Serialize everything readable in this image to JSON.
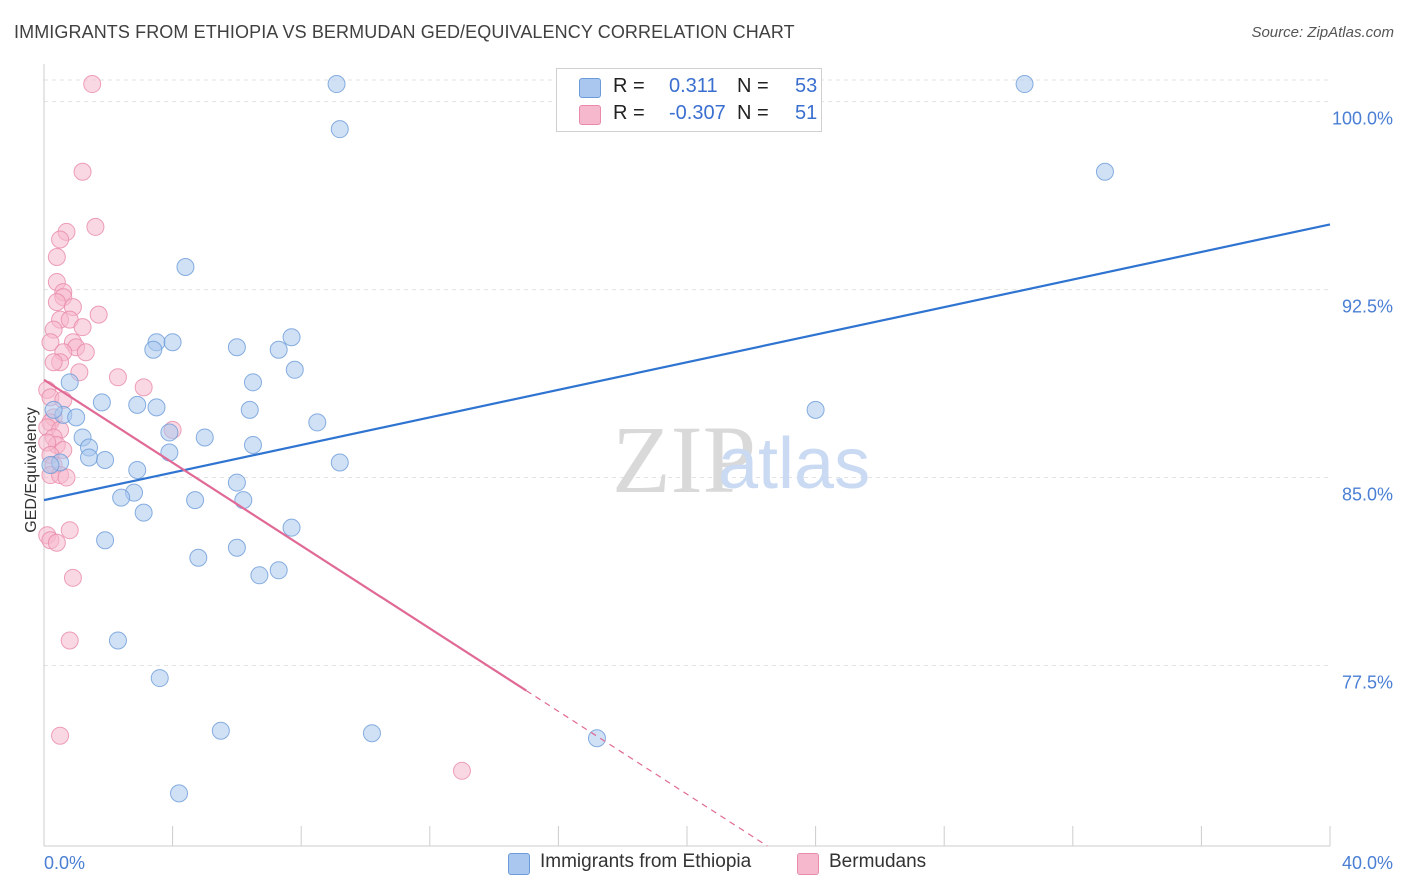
{
  "title": "IMMIGRANTS FROM ETHIOPIA VS BERMUDAN GED/EQUIVALENCY CORRELATION CHART",
  "source": "Source: ZipAtlas.com",
  "watermark": {
    "zip": "ZIP",
    "atlas": "atlas"
  },
  "legend": {
    "row1": {
      "r_label": "R =",
      "r_value": "0.311",
      "n_label": "N =",
      "n_value": "53"
    },
    "row2": {
      "r_label": "R =",
      "r_value": "-0.307",
      "n_label": "N =",
      "n_value": "51"
    }
  },
  "bottom_legend": {
    "series1": "Immigrants from Ethiopia",
    "series2": "Bermudans"
  },
  "colors": {
    "blue_fill": "#aac8ef",
    "blue_stroke": "#6b9bd8",
    "blue_line": "#2f74d0",
    "pink_fill": "#f6b8cc",
    "pink_stroke": "#e88aa8",
    "pink_line": "#e06a95",
    "tick_color": "#4a7fd4"
  },
  "chart_data": {
    "type": "scatter",
    "title": "IMMIGRANTS FROM ETHIOPIA VS BERMUDAN GED/EQUIVALENCY CORRELATION CHART",
    "xlabel": "",
    "ylabel": "GED/Equivalency",
    "xlim": [
      0,
      40
    ],
    "ylim": [
      70.3,
      101.5
    ],
    "x_tick_labels": [
      "0.0%",
      "40.0%"
    ],
    "y_ticks": [
      77.5,
      85.0,
      92.5,
      100.0
    ],
    "y_tick_labels": [
      "77.5%",
      "85.0%",
      "92.5%",
      "100.0%"
    ],
    "grid": true,
    "series": [
      {
        "name": "Immigrants from Ethiopia",
        "R": 0.311,
        "N": 53,
        "trend": {
          "x": [
            0.0,
            40.0
          ],
          "y": [
            84.1,
            95.1
          ]
        },
        "points": [
          [
            9.1,
            100.7
          ],
          [
            30.5,
            100.7
          ],
          [
            9.2,
            98.9
          ],
          [
            33.0,
            97.2
          ],
          [
            4.4,
            93.4
          ],
          [
            7.7,
            90.6
          ],
          [
            3.5,
            90.4
          ],
          [
            4.0,
            90.4
          ],
          [
            6.0,
            90.2
          ],
          [
            7.3,
            90.1
          ],
          [
            3.4,
            90.1
          ],
          [
            7.8,
            89.3
          ],
          [
            2.9,
            87.9
          ],
          [
            0.8,
            88.8
          ],
          [
            6.5,
            88.8
          ],
          [
            1.8,
            88.0
          ],
          [
            3.5,
            87.8
          ],
          [
            6.4,
            87.7
          ],
          [
            0.6,
            87.5
          ],
          [
            24.0,
            87.7
          ],
          [
            8.5,
            87.2
          ],
          [
            1.0,
            87.4
          ],
          [
            0.3,
            87.7
          ],
          [
            3.9,
            86.8
          ],
          [
            5.0,
            86.6
          ],
          [
            1.2,
            86.6
          ],
          [
            1.4,
            86.2
          ],
          [
            3.9,
            86.0
          ],
          [
            6.5,
            86.3
          ],
          [
            1.4,
            85.8
          ],
          [
            1.9,
            85.7
          ],
          [
            0.5,
            85.6
          ],
          [
            9.2,
            85.6
          ],
          [
            2.9,
            85.3
          ],
          [
            0.2,
            85.5
          ],
          [
            6.0,
            84.8
          ],
          [
            2.8,
            84.4
          ],
          [
            2.4,
            84.2
          ],
          [
            4.7,
            84.1
          ],
          [
            6.2,
            84.1
          ],
          [
            3.1,
            83.6
          ],
          [
            7.7,
            83.0
          ],
          [
            1.9,
            82.5
          ],
          [
            6.0,
            82.2
          ],
          [
            4.8,
            81.8
          ],
          [
            7.3,
            81.3
          ],
          [
            6.7,
            81.1
          ],
          [
            2.3,
            78.5
          ],
          [
            3.6,
            77.0
          ],
          [
            5.5,
            74.9
          ],
          [
            10.2,
            74.8
          ],
          [
            17.2,
            74.6
          ],
          [
            4.2,
            72.4
          ]
        ]
      },
      {
        "name": "Bermudans",
        "R": -0.307,
        "N": 51,
        "trend": {
          "x": [
            0.0,
            15.0
          ],
          "y": [
            88.9,
            76.5
          ]
        },
        "trend_extended": {
          "x": [
            15.0,
            22.5
          ],
          "y": [
            76.5,
            70.3
          ]
        },
        "points": [
          [
            1.5,
            100.7
          ],
          [
            1.2,
            97.2
          ],
          [
            1.6,
            95.0
          ],
          [
            0.7,
            94.8
          ],
          [
            0.5,
            94.5
          ],
          [
            0.4,
            93.8
          ],
          [
            0.4,
            92.8
          ],
          [
            0.6,
            92.4
          ],
          [
            0.6,
            92.2
          ],
          [
            0.4,
            92.0
          ],
          [
            0.9,
            91.8
          ],
          [
            1.7,
            91.5
          ],
          [
            0.5,
            91.3
          ],
          [
            0.8,
            91.3
          ],
          [
            1.2,
            91.0
          ],
          [
            0.3,
            90.9
          ],
          [
            0.2,
            90.4
          ],
          [
            0.9,
            90.4
          ],
          [
            1.0,
            90.2
          ],
          [
            0.6,
            90.0
          ],
          [
            1.3,
            90.0
          ],
          [
            0.5,
            89.6
          ],
          [
            0.3,
            89.6
          ],
          [
            1.1,
            89.2
          ],
          [
            2.3,
            89.0
          ],
          [
            3.1,
            88.6
          ],
          [
            0.1,
            88.5
          ],
          [
            0.2,
            88.2
          ],
          [
            0.6,
            88.1
          ],
          [
            0.3,
            87.4
          ],
          [
            0.2,
            87.2
          ],
          [
            0.1,
            87.0
          ],
          [
            0.5,
            86.9
          ],
          [
            4.0,
            86.9
          ],
          [
            0.3,
            86.6
          ],
          [
            0.4,
            86.3
          ],
          [
            0.1,
            86.4
          ],
          [
            0.6,
            86.1
          ],
          [
            0.2,
            85.9
          ],
          [
            0.3,
            85.5
          ],
          [
            0.2,
            85.1
          ],
          [
            0.5,
            85.1
          ],
          [
            0.7,
            85.0
          ],
          [
            0.8,
            82.9
          ],
          [
            0.1,
            82.7
          ],
          [
            0.2,
            82.5
          ],
          [
            0.4,
            82.4
          ],
          [
            0.9,
            81.0
          ],
          [
            0.8,
            78.5
          ],
          [
            0.5,
            74.7
          ],
          [
            13.0,
            73.3
          ]
        ]
      }
    ]
  }
}
